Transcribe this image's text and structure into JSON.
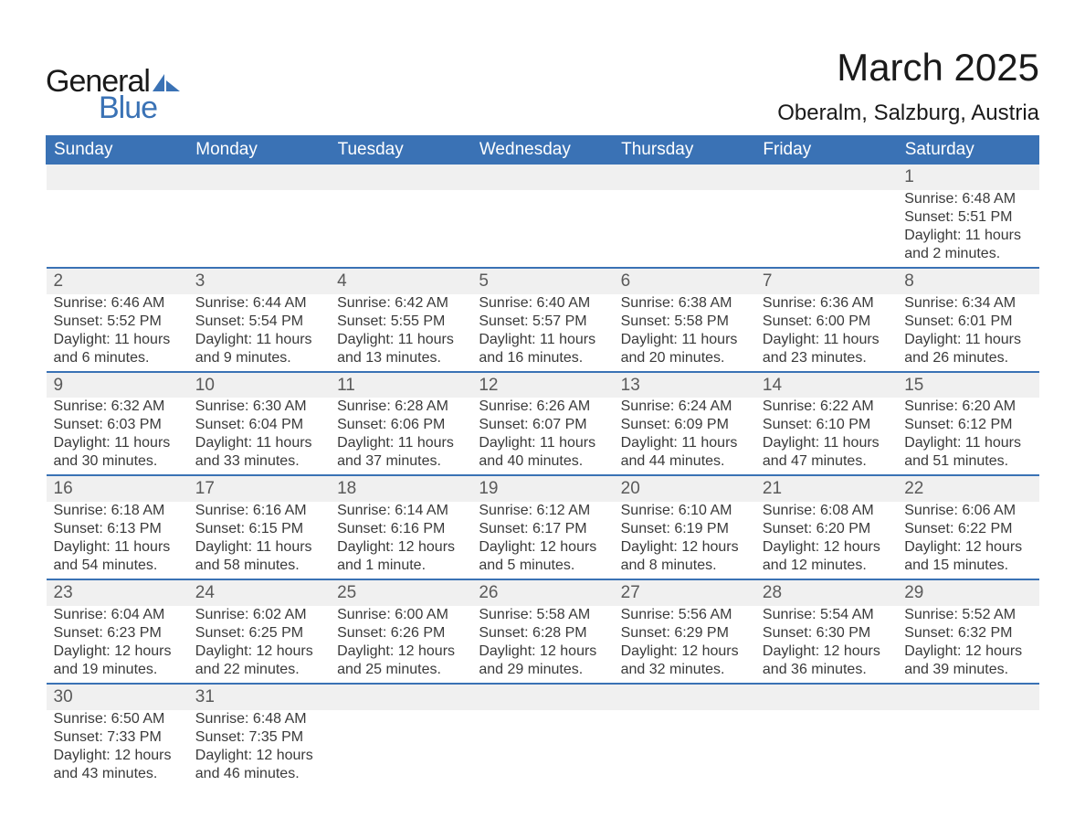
{
  "brand": {
    "part1": "General",
    "part2": "Blue",
    "accent_color": "#3a72b5"
  },
  "header": {
    "title": "March 2025",
    "location": "Oberalm, Salzburg, Austria",
    "title_fontsize": 42,
    "location_fontsize": 24
  },
  "calendar": {
    "type": "table",
    "header_bg": "#3a72b5",
    "header_fg": "#ffffff",
    "daynum_bg": "#f0f0f0",
    "row_divider_color": "#3a72b5",
    "text_color": "#3a3a3a",
    "font_family": "Arial",
    "body_fontsize": 16,
    "columns": [
      "Sunday",
      "Monday",
      "Tuesday",
      "Wednesday",
      "Thursday",
      "Friday",
      "Saturday"
    ],
    "weeks": [
      {
        "nums": [
          "",
          "",
          "",
          "",
          "",
          "",
          "1"
        ],
        "cells": [
          null,
          null,
          null,
          null,
          null,
          null,
          {
            "sunrise": "6:48 AM",
            "sunset": "5:51 PM",
            "daylight": "11 hours and 2 minutes."
          }
        ]
      },
      {
        "nums": [
          "2",
          "3",
          "4",
          "5",
          "6",
          "7",
          "8"
        ],
        "cells": [
          {
            "sunrise": "6:46 AM",
            "sunset": "5:52 PM",
            "daylight": "11 hours and 6 minutes."
          },
          {
            "sunrise": "6:44 AM",
            "sunset": "5:54 PM",
            "daylight": "11 hours and 9 minutes."
          },
          {
            "sunrise": "6:42 AM",
            "sunset": "5:55 PM",
            "daylight": "11 hours and 13 minutes."
          },
          {
            "sunrise": "6:40 AM",
            "sunset": "5:57 PM",
            "daylight": "11 hours and 16 minutes."
          },
          {
            "sunrise": "6:38 AM",
            "sunset": "5:58 PM",
            "daylight": "11 hours and 20 minutes."
          },
          {
            "sunrise": "6:36 AM",
            "sunset": "6:00 PM",
            "daylight": "11 hours and 23 minutes."
          },
          {
            "sunrise": "6:34 AM",
            "sunset": "6:01 PM",
            "daylight": "11 hours and 26 minutes."
          }
        ]
      },
      {
        "nums": [
          "9",
          "10",
          "11",
          "12",
          "13",
          "14",
          "15"
        ],
        "cells": [
          {
            "sunrise": "6:32 AM",
            "sunset": "6:03 PM",
            "daylight": "11 hours and 30 minutes."
          },
          {
            "sunrise": "6:30 AM",
            "sunset": "6:04 PM",
            "daylight": "11 hours and 33 minutes."
          },
          {
            "sunrise": "6:28 AM",
            "sunset": "6:06 PM",
            "daylight": "11 hours and 37 minutes."
          },
          {
            "sunrise": "6:26 AM",
            "sunset": "6:07 PM",
            "daylight": "11 hours and 40 minutes."
          },
          {
            "sunrise": "6:24 AM",
            "sunset": "6:09 PM",
            "daylight": "11 hours and 44 minutes."
          },
          {
            "sunrise": "6:22 AM",
            "sunset": "6:10 PM",
            "daylight": "11 hours and 47 minutes."
          },
          {
            "sunrise": "6:20 AM",
            "sunset": "6:12 PM",
            "daylight": "11 hours and 51 minutes."
          }
        ]
      },
      {
        "nums": [
          "16",
          "17",
          "18",
          "19",
          "20",
          "21",
          "22"
        ],
        "cells": [
          {
            "sunrise": "6:18 AM",
            "sunset": "6:13 PM",
            "daylight": "11 hours and 54 minutes."
          },
          {
            "sunrise": "6:16 AM",
            "sunset": "6:15 PM",
            "daylight": "11 hours and 58 minutes."
          },
          {
            "sunrise": "6:14 AM",
            "sunset": "6:16 PM",
            "daylight": "12 hours and 1 minute."
          },
          {
            "sunrise": "6:12 AM",
            "sunset": "6:17 PM",
            "daylight": "12 hours and 5 minutes."
          },
          {
            "sunrise": "6:10 AM",
            "sunset": "6:19 PM",
            "daylight": "12 hours and 8 minutes."
          },
          {
            "sunrise": "6:08 AM",
            "sunset": "6:20 PM",
            "daylight": "12 hours and 12 minutes."
          },
          {
            "sunrise": "6:06 AM",
            "sunset": "6:22 PM",
            "daylight": "12 hours and 15 minutes."
          }
        ]
      },
      {
        "nums": [
          "23",
          "24",
          "25",
          "26",
          "27",
          "28",
          "29"
        ],
        "cells": [
          {
            "sunrise": "6:04 AM",
            "sunset": "6:23 PM",
            "daylight": "12 hours and 19 minutes."
          },
          {
            "sunrise": "6:02 AM",
            "sunset": "6:25 PM",
            "daylight": "12 hours and 22 minutes."
          },
          {
            "sunrise": "6:00 AM",
            "sunset": "6:26 PM",
            "daylight": "12 hours and 25 minutes."
          },
          {
            "sunrise": "5:58 AM",
            "sunset": "6:28 PM",
            "daylight": "12 hours and 29 minutes."
          },
          {
            "sunrise": "5:56 AM",
            "sunset": "6:29 PM",
            "daylight": "12 hours and 32 minutes."
          },
          {
            "sunrise": "5:54 AM",
            "sunset": "6:30 PM",
            "daylight": "12 hours and 36 minutes."
          },
          {
            "sunrise": "5:52 AM",
            "sunset": "6:32 PM",
            "daylight": "12 hours and 39 minutes."
          }
        ]
      },
      {
        "nums": [
          "30",
          "31",
          "",
          "",
          "",
          "",
          ""
        ],
        "cells": [
          {
            "sunrise": "6:50 AM",
            "sunset": "7:33 PM",
            "daylight": "12 hours and 43 minutes."
          },
          {
            "sunrise": "6:48 AM",
            "sunset": "7:35 PM",
            "daylight": "12 hours and 46 minutes."
          },
          null,
          null,
          null,
          null,
          null
        ]
      }
    ],
    "labels": {
      "sunrise": "Sunrise: ",
      "sunset": "Sunset: ",
      "daylight": "Daylight: "
    }
  }
}
